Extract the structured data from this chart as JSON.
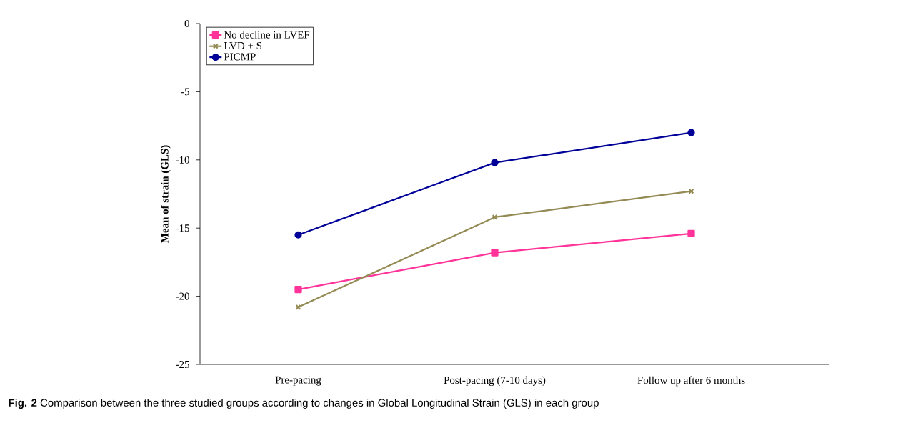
{
  "chart_data": {
    "type": "line",
    "ylabel": "Mean of strain (GLS)",
    "categories": [
      "Pre-pacing",
      "Post-pacing (7-10 days)",
      "Follow up after 6 months"
    ],
    "series": [
      {
        "name": "No decline in LVEF",
        "color": "#ff3399",
        "marker": "square",
        "values": [
          -19.5,
          -16.8,
          -15.4
        ]
      },
      {
        "name": "LVD + S",
        "color": "#948a54",
        "marker": "cross",
        "values": [
          -20.8,
          -14.2,
          -12.3
        ]
      },
      {
        "name": "PICMP",
        "color": "#000099",
        "marker": "circle",
        "values": [
          -15.5,
          -10.2,
          -8.0
        ]
      }
    ],
    "ylim": [
      -25,
      0
    ],
    "yticks": [
      -25,
      -20,
      -15,
      -10,
      -5,
      0
    ],
    "grid": false,
    "legend": "top left",
    "line_style": "solid",
    "annotations": [
      "**Fig. 2** Comparison between the three studied groups according to changes in Global Longitudinal Strain (GLS) in each group"
    ]
  }
}
